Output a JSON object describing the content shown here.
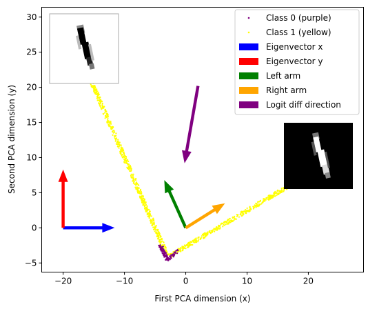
{
  "chart_data": {
    "type": "scatter",
    "title": "",
    "xlabel": "First PCA dimension (x)",
    "ylabel": "Second PCA dimension (y)",
    "xlim": [
      -23.5,
      29.0
    ],
    "ylim": [
      -6.3,
      31.4
    ],
    "xticks": [
      -20,
      -10,
      0,
      10,
      20
    ],
    "yticks": [
      -5,
      0,
      5,
      10,
      15,
      20,
      25,
      30
    ],
    "grid": false,
    "legend_position": "top-right",
    "series": [
      {
        "name": "Class 0 (purple)",
        "color": "#800080",
        "marker": "point",
        "segments": [
          {
            "from": [
              -3.0,
              -4.6
            ],
            "to": [
              -1.2,
              -3.2
            ]
          },
          {
            "from": [
              -3.0,
              -4.6
            ],
            "to": [
              -4.0,
              -2.6
            ]
          },
          {
            "from": [
              -4.2,
              -2.4
            ],
            "to": [
              -3.2,
              -4.2
            ]
          }
        ]
      },
      {
        "name": "Class 1 (yellow)",
        "color": "#ffff00",
        "marker": "point",
        "segments": [
          {
            "from": [
              -15.5,
              21.0
            ],
            "to": [
              -3.0,
              -4.0
            ]
          },
          {
            "from": [
              -2.6,
              -4.0
            ],
            "to": [
              17.5,
              6.3
            ]
          }
        ]
      }
    ],
    "arrows": [
      {
        "name": "Eigenvector x",
        "color": "#0000ff",
        "start": [
          -20,
          0
        ],
        "end": [
          -11.6,
          0
        ]
      },
      {
        "name": "Eigenvector y",
        "color": "#ff0000",
        "start": [
          -20,
          0
        ],
        "end": [
          -20,
          8.3
        ]
      },
      {
        "name": "Left arm",
        "color": "#008000",
        "start": [
          0,
          0
        ],
        "end": [
          -3.5,
          6.8
        ]
      },
      {
        "name": "Right arm",
        "color": "#ffa500",
        "start": [
          0,
          0
        ],
        "end": [
          6.4,
          3.5
        ]
      },
      {
        "name": "Logit diff direction",
        "color": "#800080",
        "start": [
          2.0,
          20.2
        ],
        "end": [
          -0.2,
          9.2
        ]
      }
    ],
    "insets": [
      {
        "name": "inset-digit-top-left",
        "style": "dark-on-light"
      },
      {
        "name": "inset-digit-right",
        "style": "light-on-dark"
      }
    ]
  }
}
